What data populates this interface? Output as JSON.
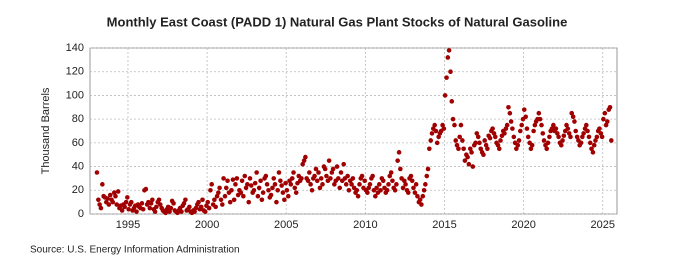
{
  "chart_data": {
    "type": "scatter",
    "title": "Monthly East Coast (PADD 1) Natural Gas Plant Stocks of Natural Gasoline",
    "y_label": "Thousand Barrels",
    "source": "Source: U.S. Energy Information Administration",
    "color": "#a00000",
    "grid": true,
    "xlim": [
      1992.6,
      2025.9
    ],
    "xticks": [
      1995,
      2000,
      2005,
      2010,
      2015,
      2020,
      2025
    ],
    "ylim": [
      0,
      140
    ],
    "yticks": [
      0,
      20,
      40,
      60,
      80,
      100,
      120,
      140
    ],
    "x": [
      1993.04,
      1993.13,
      1993.21,
      1993.29,
      1993.38,
      1993.46,
      1993.54,
      1993.63,
      1993.71,
      1993.79,
      1993.88,
      1993.96,
      1994.04,
      1994.13,
      1994.21,
      1994.29,
      1994.38,
      1994.46,
      1994.54,
      1994.63,
      1994.71,
      1994.79,
      1994.88,
      1994.96,
      1995.04,
      1995.13,
      1995.21,
      1995.29,
      1995.38,
      1995.46,
      1995.54,
      1995.63,
      1995.71,
      1995.79,
      1995.88,
      1995.96,
      1996.04,
      1996.13,
      1996.21,
      1996.29,
      1996.38,
      1996.46,
      1996.54,
      1996.63,
      1996.71,
      1996.79,
      1996.88,
      1996.96,
      1997.04,
      1997.13,
      1997.21,
      1997.29,
      1997.38,
      1997.46,
      1997.54,
      1997.63,
      1997.71,
      1997.79,
      1997.88,
      1997.96,
      1998.04,
      1998.13,
      1998.21,
      1998.29,
      1998.38,
      1998.46,
      1998.54,
      1998.63,
      1998.71,
      1998.79,
      1998.88,
      1998.96,
      1999.04,
      1999.13,
      1999.21,
      1999.29,
      1999.38,
      1999.46,
      1999.54,
      1999.63,
      1999.71,
      1999.79,
      1999.88,
      1999.96,
      2000.04,
      2000.13,
      2000.21,
      2000.29,
      2000.38,
      2000.46,
      2000.54,
      2000.63,
      2000.71,
      2000.79,
      2000.88,
      2000.96,
      2001.04,
      2001.13,
      2001.21,
      2001.29,
      2001.38,
      2001.46,
      2001.54,
      2001.63,
      2001.71,
      2001.79,
      2001.88,
      2001.96,
      2002.04,
      2002.13,
      2002.21,
      2002.29,
      2002.38,
      2002.46,
      2002.54,
      2002.63,
      2002.71,
      2002.79,
      2002.88,
      2002.96,
      2003.04,
      2003.13,
      2003.21,
      2003.29,
      2003.38,
      2003.46,
      2003.54,
      2003.63,
      2003.71,
      2003.79,
      2003.88,
      2003.96,
      2004.04,
      2004.13,
      2004.21,
      2004.29,
      2004.38,
      2004.46,
      2004.54,
      2004.63,
      2004.71,
      2004.79,
      2004.88,
      2004.96,
      2005.04,
      2005.13,
      2005.21,
      2005.29,
      2005.38,
      2005.46,
      2005.54,
      2005.63,
      2005.71,
      2005.79,
      2005.88,
      2005.96,
      2006.04,
      2006.13,
      2006.21,
      2006.29,
      2006.38,
      2006.46,
      2006.54,
      2006.63,
      2006.71,
      2006.79,
      2006.88,
      2006.96,
      2007.04,
      2007.13,
      2007.21,
      2007.29,
      2007.38,
      2007.46,
      2007.54,
      2007.63,
      2007.71,
      2007.79,
      2007.88,
      2007.96,
      2008.04,
      2008.13,
      2008.21,
      2008.29,
      2008.38,
      2008.46,
      2008.54,
      2008.63,
      2008.71,
      2008.79,
      2008.88,
      2008.96,
      2009.04,
      2009.13,
      2009.21,
      2009.29,
      2009.38,
      2009.46,
      2009.54,
      2009.63,
      2009.71,
      2009.79,
      2009.88,
      2009.96,
      2010.04,
      2010.13,
      2010.21,
      2010.29,
      2010.38,
      2010.46,
      2010.54,
      2010.63,
      2010.71,
      2010.79,
      2010.88,
      2010.96,
      2011.04,
      2011.13,
      2011.21,
      2011.29,
      2011.38,
      2011.46,
      2011.54,
      2011.63,
      2011.71,
      2011.79,
      2011.88,
      2011.96,
      2012.04,
      2012.13,
      2012.21,
      2012.29,
      2012.38,
      2012.46,
      2012.54,
      2012.63,
      2012.71,
      2012.79,
      2012.88,
      2012.96,
      2013.04,
      2013.13,
      2013.21,
      2013.29,
      2013.38,
      2013.46,
      2013.54,
      2013.63,
      2013.71,
      2013.79,
      2013.88,
      2013.96,
      2014.04,
      2014.13,
      2014.21,
      2014.29,
      2014.38,
      2014.46,
      2014.54,
      2014.63,
      2014.71,
      2014.79,
      2014.88,
      2014.96,
      2015.04,
      2015.13,
      2015.21,
      2015.29,
      2015.38,
      2015.46,
      2015.54,
      2015.63,
      2015.71,
      2015.79,
      2015.88,
      2015.96,
      2016.04,
      2016.13,
      2016.21,
      2016.29,
      2016.38,
      2016.46,
      2016.54,
      2016.63,
      2016.71,
      2016.79,
      2016.88,
      2016.96,
      2017.04,
      2017.13,
      2017.21,
      2017.29,
      2017.38,
      2017.46,
      2017.54,
      2017.63,
      2017.71,
      2017.79,
      2017.88,
      2017.96,
      2018.04,
      2018.13,
      2018.21,
      2018.29,
      2018.38,
      2018.46,
      2018.54,
      2018.63,
      2018.71,
      2018.79,
      2018.88,
      2018.96,
      2019.04,
      2019.13,
      2019.21,
      2019.29,
      2019.38,
      2019.46,
      2019.54,
      2019.63,
      2019.71,
      2019.79,
      2019.88,
      2019.96,
      2020.04,
      2020.13,
      2020.21,
      2020.29,
      2020.38,
      2020.46,
      2020.54,
      2020.63,
      2020.71,
      2020.79,
      2020.88,
      2020.96,
      2021.04,
      2021.13,
      2021.21,
      2021.29,
      2021.38,
      2021.46,
      2021.54,
      2021.63,
      2021.71,
      2021.79,
      2021.88,
      2021.96,
      2022.04,
      2022.13,
      2022.21,
      2022.29,
      2022.38,
      2022.46,
      2022.54,
      2022.63,
      2022.71,
      2022.79,
      2022.88,
      2022.96,
      2023.04,
      2023.13,
      2023.21,
      2023.29,
      2023.38,
      2023.46,
      2023.54,
      2023.63,
      2023.71,
      2023.79,
      2023.88,
      2023.96,
      2024.04,
      2024.13,
      2024.21,
      2024.29,
      2024.38,
      2024.46,
      2024.54,
      2024.63,
      2024.71,
      2024.79,
      2024.88,
      2024.96,
      2025.04,
      2025.13,
      2025.21,
      2025.29,
      2025.38,
      2025.46,
      2025.54
    ],
    "values": [
      35,
      12,
      8,
      5,
      25,
      15,
      14,
      10,
      13,
      8,
      16,
      12,
      10,
      18,
      15,
      8,
      19,
      5,
      7,
      3,
      8,
      6,
      10,
      14,
      4,
      8,
      10,
      3,
      5,
      7,
      2,
      8,
      6,
      5,
      9,
      4,
      20,
      21,
      8,
      10,
      5,
      9,
      12,
      4,
      2,
      6,
      10,
      12,
      8,
      5,
      3,
      2,
      1,
      4,
      6,
      2,
      5,
      11,
      9,
      3,
      2,
      1,
      3,
      5,
      2,
      7,
      9,
      12,
      3,
      4,
      6,
      2,
      1,
      3,
      2,
      5,
      8,
      10,
      4,
      6,
      12,
      3,
      2,
      7,
      10,
      5,
      20,
      25,
      8,
      12,
      6,
      15,
      18,
      22,
      12,
      8,
      30,
      15,
      22,
      28,
      18,
      10,
      20,
      29,
      12,
      25,
      30,
      16,
      20,
      18,
      28,
      15,
      32,
      22,
      25,
      10,
      30,
      24,
      18,
      20,
      26,
      35,
      15,
      22,
      28,
      12,
      18,
      30,
      32,
      25,
      20,
      14,
      16,
      22,
      30,
      25,
      10,
      20,
      35,
      28,
      24,
      18,
      12,
      26,
      20,
      15,
      28,
      25,
      30,
      35,
      22,
      18,
      26,
      32,
      28,
      30,
      42,
      45,
      48,
      30,
      28,
      35,
      25,
      20,
      30,
      32,
      38,
      28,
      35,
      22,
      30,
      25,
      40,
      38,
      32,
      28,
      45,
      30,
      35,
      38,
      25,
      28,
      40,
      30,
      22,
      35,
      28,
      42,
      30,
      25,
      32,
      20,
      28,
      25,
      30,
      22,
      18,
      20,
      15,
      25,
      30,
      32,
      22,
      28,
      20,
      18,
      22,
      25,
      30,
      32,
      20,
      15,
      22,
      18,
      25,
      20,
      30,
      28,
      22,
      18,
      20,
      25,
      32,
      35,
      28,
      22,
      20,
      25,
      45,
      52,
      38,
      30,
      22,
      28,
      25,
      20,
      18,
      30,
      32,
      28,
      22,
      18,
      25,
      15,
      10,
      12,
      8,
      15,
      20,
      25,
      32,
      38,
      55,
      62,
      68,
      72,
      75,
      70,
      60,
      65,
      68,
      70,
      75,
      72,
      100,
      115,
      132,
      138,
      120,
      95,
      80,
      75,
      62,
      58,
      55,
      65,
      75,
      62,
      55,
      45,
      50,
      48,
      42,
      55,
      52,
      40,
      58,
      60,
      68,
      65,
      60,
      55,
      52,
      50,
      62,
      58,
      55,
      66,
      64,
      70,
      72,
      68,
      65,
      60,
      58,
      55,
      62,
      66,
      70,
      68,
      72,
      75,
      90,
      85,
      78,
      72,
      65,
      60,
      55,
      58,
      62,
      70,
      75,
      80,
      88,
      82,
      72,
      65,
      60,
      55,
      58,
      70,
      75,
      78,
      80,
      85,
      80,
      75,
      68,
      62,
      58,
      55,
      60,
      65,
      70,
      72,
      75,
      70,
      72,
      68,
      65,
      60,
      58,
      62,
      66,
      70,
      75,
      72,
      68,
      65,
      85,
      82,
      78,
      70,
      65,
      62,
      58,
      60,
      65,
      68,
      72,
      75,
      70,
      65,
      60,
      55,
      52,
      58,
      62,
      65,
      70,
      72,
      68,
      65,
      80,
      85,
      75,
      78,
      88,
      90,
      62
    ]
  }
}
